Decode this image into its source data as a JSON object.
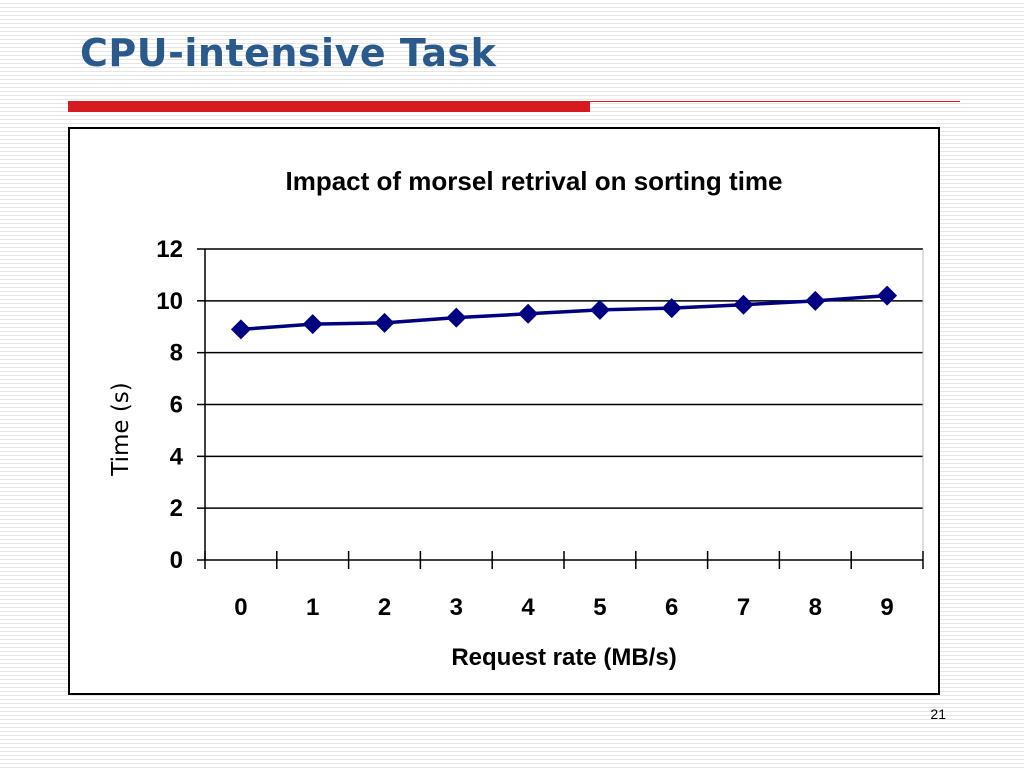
{
  "slide": {
    "title": "CPU-intensive Task",
    "page_number": "21"
  },
  "colors": {
    "title": "#2a5a8c",
    "accent_bar": "#d71920",
    "series": "#000080",
    "gridline": "#000000"
  },
  "chart_data": {
    "type": "line",
    "title": "Impact of morsel retrival on sorting time",
    "xlabel": "Request rate (MB/s)",
    "ylabel": "Time (s)",
    "categories": [
      "0",
      "1",
      "2",
      "3",
      "4",
      "5",
      "6",
      "7",
      "8",
      "9"
    ],
    "series": [
      {
        "values": [
          8.9,
          9.1,
          9.15,
          9.35,
          9.5,
          9.65,
          9.72,
          9.85,
          10.0,
          10.2
        ]
      }
    ],
    "ylim": [
      0,
      12
    ],
    "yticks": [
      0,
      2,
      4,
      6,
      8,
      10,
      12
    ],
    "grid": true,
    "legend": "none",
    "marker": "diamond"
  }
}
